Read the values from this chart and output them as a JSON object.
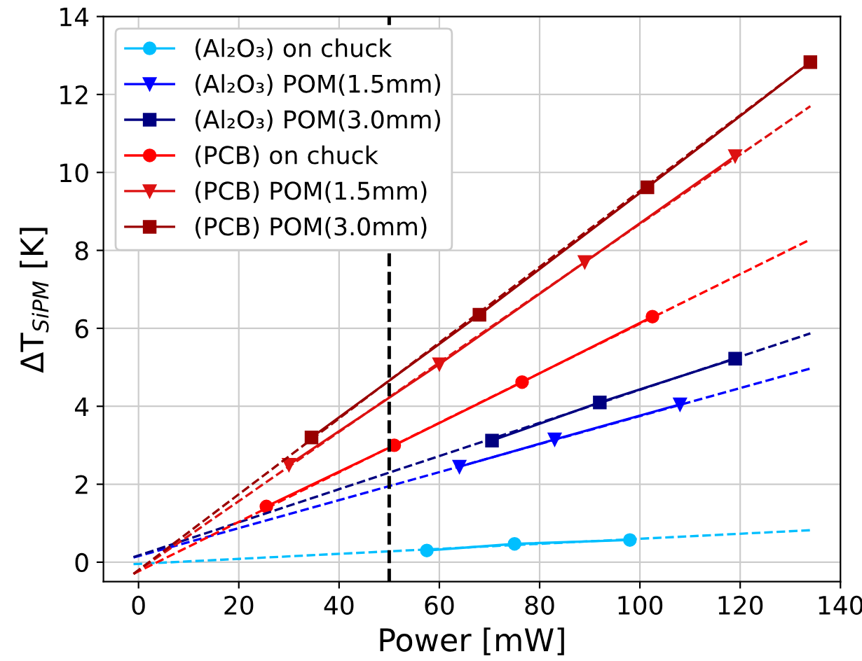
{
  "chart_data": {
    "type": "line",
    "xlabel": "Power [mW]",
    "ylabel": "ΔT$_{SiPM}$ [K]",
    "xlim": [
      -7,
      140
    ],
    "ylim": [
      -0.5,
      14
    ],
    "xticks": [
      0,
      20,
      40,
      60,
      80,
      100,
      120,
      140
    ],
    "yticks": [
      0,
      2,
      4,
      6,
      8,
      10,
      12,
      14
    ],
    "grid": true,
    "legend": "top left",
    "series": [
      {
        "name": "(Al₂O₃) on chuck",
        "color": "#00bfff",
        "marker": "circle",
        "x": [
          57.5,
          75,
          98
        ],
        "values": [
          0.3,
          0.47,
          0.57
        ]
      },
      {
        "name": "(Al₂O₃) POM(1.5mm)",
        "color": "#0000ff",
        "marker": "triangle",
        "x": [
          64,
          83,
          108
        ],
        "values": [
          2.45,
          3.15,
          4.05
        ]
      },
      {
        "name": "(Al₂O₃) POM(3.0mm)",
        "color": "#000080",
        "marker": "square",
        "x": [
          70.5,
          92,
          119
        ],
        "values": [
          3.12,
          4.1,
          5.22
        ]
      },
      {
        "name": "(PCB) on chuck",
        "color": "#ff0000",
        "marker": "circle",
        "x": [
          25.5,
          51,
          76.5,
          102.5
        ],
        "values": [
          1.43,
          3.0,
          4.62,
          6.3
        ]
      },
      {
        "name": "(PCB) POM(1.5mm)",
        "color": "#dd1111",
        "marker": "triangle",
        "x": [
          30,
          60,
          89,
          119
        ],
        "values": [
          2.5,
          5.08,
          7.7,
          10.42
        ]
      },
      {
        "name": "(PCB) POM(3.0mm)",
        "color": "#990000",
        "marker": "square",
        "x": [
          34.5,
          68,
          101.5,
          134
        ],
        "values": [
          3.2,
          6.35,
          9.62,
          12.83
        ]
      },
      {
        "color": "#00bfff",
        "line_style": "dashed",
        "marker": "none",
        "x": [
          -1,
          134
        ],
        "values": [
          -0.05,
          0.82
        ]
      },
      {
        "color": "#0000ff",
        "line_style": "dashed",
        "marker": "none",
        "x": [
          -1,
          134
        ],
        "values": [
          0.12,
          4.97
        ]
      },
      {
        "color": "#000080",
        "line_style": "dashed",
        "marker": "none",
        "x": [
          -1,
          134
        ],
        "values": [
          0.13,
          5.87
        ]
      },
      {
        "color": "#ff0000",
        "line_style": "dashed",
        "marker": "none",
        "x": [
          -1,
          134
        ],
        "values": [
          -0.3,
          8.28
        ]
      },
      {
        "color": "#dd1111",
        "line_style": "dashed",
        "marker": "none",
        "x": [
          -1,
          134
        ],
        "values": [
          -0.3,
          11.7
        ]
      },
      {
        "color": "#990000",
        "line_style": "dashed",
        "marker": "none",
        "x": [
          -1,
          134
        ],
        "values": [
          -0.3,
          12.83
        ]
      }
    ],
    "ref_lines": [
      {
        "axis": "x",
        "value": 50,
        "color": "#000000",
        "line_style": "dashed"
      }
    ]
  }
}
